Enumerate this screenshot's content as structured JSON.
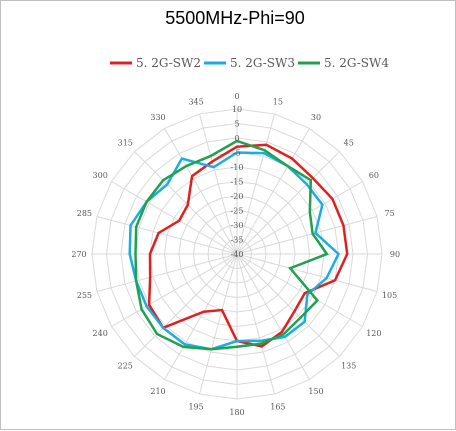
{
  "chart_data": {
    "type": "radar",
    "title": "5500MHz-Phi=90",
    "angles": [
      0,
      15,
      30,
      45,
      60,
      75,
      90,
      105,
      120,
      135,
      150,
      165,
      180,
      195,
      210,
      225,
      240,
      255,
      270,
      285,
      300,
      315,
      330,
      345
    ],
    "angle_labels": [
      "0",
      "15",
      "30",
      "45",
      "60",
      "75",
      "90",
      "105",
      "120",
      "135",
      "150",
      "165",
      "180",
      "195",
      "210",
      "225",
      "240",
      "255",
      "270",
      "285",
      "300",
      "315",
      "330",
      "345"
    ],
    "rlim": [
      -40,
      10
    ],
    "r_ticks": [
      10,
      5,
      0,
      -5,
      -10,
      -15,
      -20,
      -25,
      -30,
      -35,
      -40
    ],
    "r_tick_labels": [
      "10",
      "5",
      "0",
      "-5",
      "-10",
      "-15",
      "-20",
      "-25",
      "-30",
      "-35",
      "-40"
    ],
    "grid": true,
    "legend_position": "top",
    "series": [
      {
        "name": "5. 2G-SW2",
        "color": "#e02020",
        "values": [
          -3,
          -1,
          -2,
          -3,
          -2,
          -2,
          -2,
          -5,
          -13,
          -12,
          -9,
          -7,
          -10,
          -20,
          -17,
          -4,
          -5,
          -9,
          -10,
          -12,
          -17,
          -16,
          -9,
          -7
        ]
      },
      {
        "name": "5. 2G-SW3",
        "color": "#1aaee0",
        "values": [
          -5,
          -4,
          -5,
          -6,
          -6,
          -12,
          -5,
          -8,
          -12,
          -7,
          -7,
          -9,
          -10,
          -6,
          -4,
          -4,
          -4,
          -4,
          -3,
          -2,
          -4,
          -6,
          -2,
          -9
        ]
      },
      {
        "name": "5. 2G-SW4",
        "color": "#22a050",
        "values": [
          -1,
          -3,
          -5,
          -4,
          -11,
          -13,
          -9,
          -21,
          -8,
          -9,
          -8,
          -8,
          -8,
          -6,
          -3,
          -1,
          -2,
          -4,
          -5,
          -4,
          -4,
          -4,
          -5,
          -5
        ]
      }
    ]
  }
}
